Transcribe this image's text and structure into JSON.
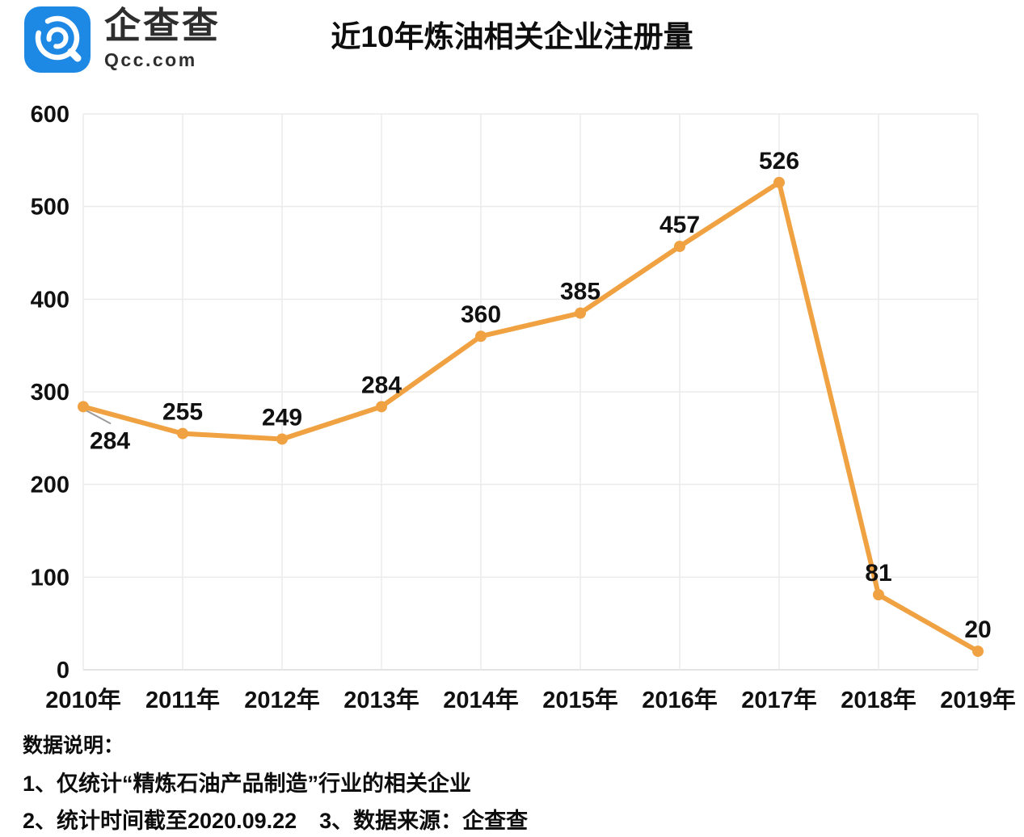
{
  "header": {
    "logo": {
      "brand": "企查查",
      "domain": "Qcc.com",
      "brand_color": "#1E88E5"
    },
    "title": "近10年炼油相关企业注册量"
  },
  "chart_data": {
    "type": "line",
    "title": "近10年炼油相关企业注册量",
    "categories": [
      "2010年",
      "2011年",
      "2012年",
      "2013年",
      "2014年",
      "2015年",
      "2016年",
      "2017年",
      "2018年",
      "2019年"
    ],
    "values": [
      284,
      255,
      249,
      284,
      360,
      385,
      457,
      526,
      81,
      20
    ],
    "ylim": [
      0,
      600
    ],
    "yticks": [
      0,
      100,
      200,
      300,
      400,
      500,
      600
    ],
    "grid": true,
    "legend": "none",
    "line_color": "#F0A242",
    "marker": "circle",
    "data_labels": true,
    "label_color": "#111111"
  },
  "notes": {
    "heading": "数据说明：",
    "line1": "1、仅统计“精炼石油产品制造”行业的相关企业",
    "line2": "2、统计时间截至2020.09.22",
    "line3": "3、数据来源：企查查"
  }
}
